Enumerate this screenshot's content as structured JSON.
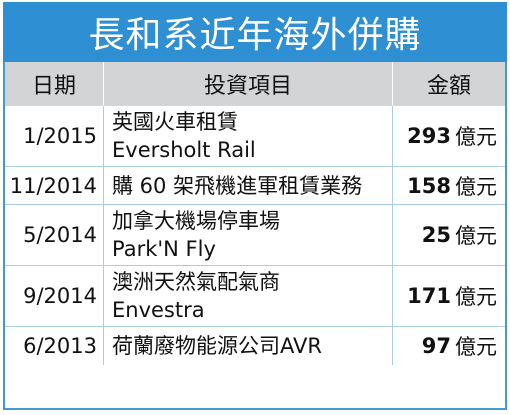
{
  "title": "長和系近年海外併購",
  "columns": {
    "date": "日期",
    "project": "投資項目",
    "amount": "金額"
  },
  "unit": "億元",
  "rows": [
    {
      "date": "1/2015",
      "project_line1": "英國火車租賃",
      "project_line2": "Eversholt Rail",
      "amount": "293"
    },
    {
      "date": "11/2014",
      "project_line1": "購 60 架飛機進軍租賃業務",
      "project_line2": "",
      "amount": "158"
    },
    {
      "date": "5/2014",
      "project_line1": "加拿大機場停車場",
      "project_line2": "Park'N Fly",
      "amount": "25"
    },
    {
      "date": "9/2014",
      "project_line1": "澳洲天然氣配氣商",
      "project_line2": "Envestra",
      "amount": "171"
    },
    {
      "date": "6/2013",
      "project_line1": "荷蘭廢物能源公司AVR",
      "project_line2": "",
      "amount": "97"
    }
  ]
}
